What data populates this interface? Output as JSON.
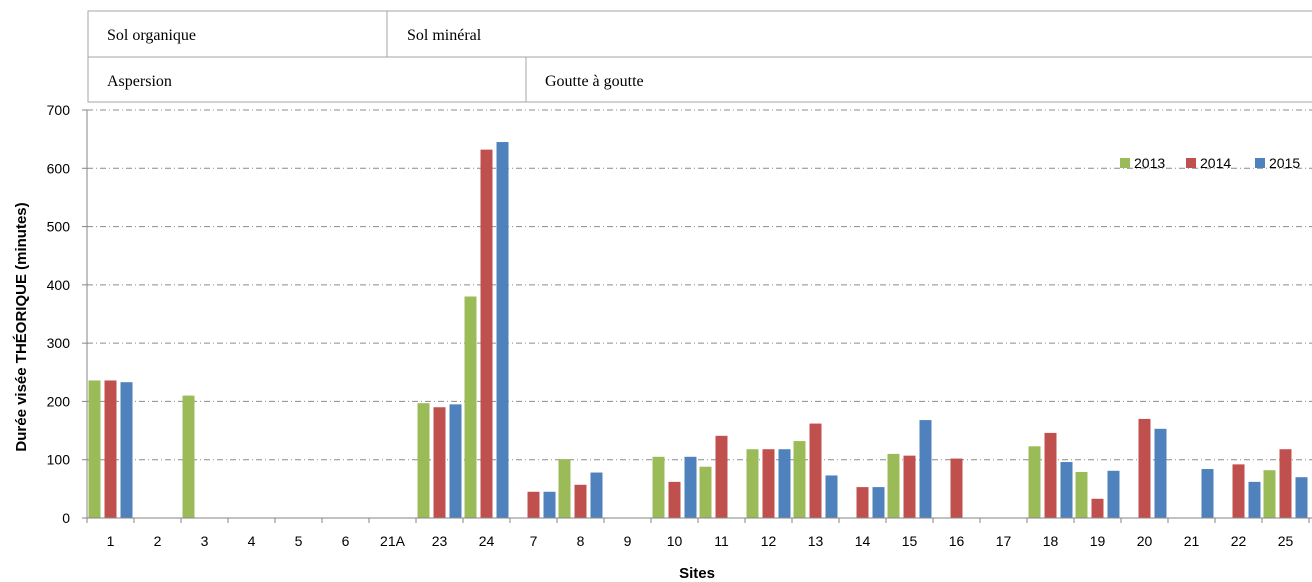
{
  "header": {
    "row1": {
      "left": "Sol organique",
      "right": "Sol minéral"
    },
    "row2": {
      "left": "Aspersion",
      "right": "Goutte à goutte"
    }
  },
  "chart_data": {
    "type": "bar",
    "title": "",
    "xlabel": "Sites",
    "ylabel": "Durée visée THÉORIQUE (minutes)",
    "ylim": [
      0,
      700
    ],
    "yticks": [
      0,
      100,
      200,
      300,
      400,
      500,
      600,
      700
    ],
    "grid": true,
    "legend_position": "top-right",
    "categories": [
      "1",
      "2",
      "3",
      "4",
      "5",
      "6",
      "21A",
      "23",
      "24",
      "7",
      "8",
      "9",
      "10",
      "11",
      "12",
      "13",
      "14",
      "15",
      "16",
      "17",
      "18",
      "19",
      "20",
      "21",
      "22",
      "25"
    ],
    "series": [
      {
        "name": "2013",
        "color": "#9bbb59",
        "values": [
          236,
          null,
          210,
          null,
          null,
          null,
          null,
          197,
          380,
          null,
          101,
          null,
          105,
          88,
          118,
          132,
          null,
          110,
          null,
          null,
          123,
          79,
          null,
          null,
          null,
          82
        ]
      },
      {
        "name": "2014",
        "color": "#c0504d",
        "values": [
          236,
          null,
          null,
          null,
          null,
          null,
          null,
          190,
          632,
          45,
          57,
          null,
          62,
          141,
          118,
          162,
          53,
          107,
          102,
          null,
          146,
          33,
          170,
          null,
          92,
          118
        ]
      },
      {
        "name": "2015",
        "color": "#4f81bd",
        "values": [
          233,
          null,
          null,
          null,
          null,
          null,
          null,
          195,
          645,
          45,
          78,
          null,
          105,
          null,
          118,
          73,
          53,
          168,
          null,
          null,
          96,
          81,
          153,
          84,
          62,
          70
        ]
      }
    ]
  }
}
